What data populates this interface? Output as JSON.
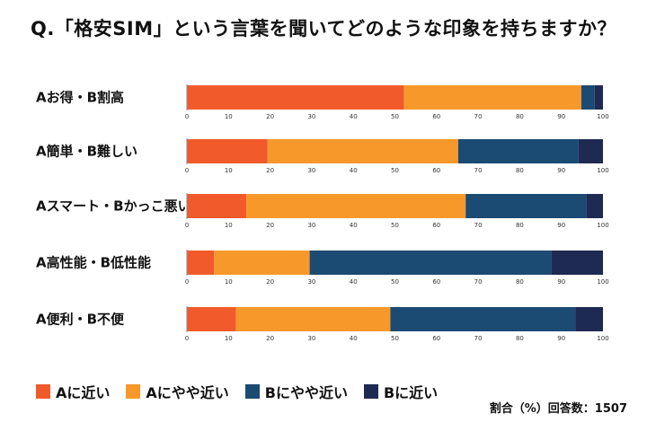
{
  "chart_data": {
    "type": "bar",
    "orientation": "horizontal",
    "stacked": true,
    "title": "Q.「格安SIM」という言葉を聞いてどのような印象を持ちますか？",
    "categories": [
      "Aお得・B割高",
      "A簡単・B難しい",
      "Aスマート・Bかっこ悪い",
      "A高性能・B低性能",
      "A便利・B不便"
    ],
    "series": [
      {
        "name": "Aに近い",
        "color": "#f15a2b",
        "values": [
          52.2,
          19.4,
          14.3,
          6.5,
          11.8
        ]
      },
      {
        "name": "Aにやや近い",
        "color": "#f7982a",
        "values": [
          42.6,
          45.8,
          52.7,
          23.0,
          37.1
        ]
      },
      {
        "name": "Bにやや近い",
        "color": "#1b4a73",
        "values": [
          3.2,
          28.9,
          29.1,
          58.1,
          44.5
        ]
      },
      {
        "name": "Bに近い",
        "color": "#1f2a52",
        "values": [
          2.0,
          5.9,
          3.9,
          12.4,
          6.6
        ]
      }
    ],
    "xlim": [
      0,
      100
    ],
    "xticks": [
      "0",
      "10",
      "20",
      "30",
      "40",
      "50",
      "60",
      "70",
      "80",
      "90",
      "100"
    ],
    "legend_position": "bottom-left",
    "grid": false,
    "note": "割合（%）回答数：1507"
  }
}
